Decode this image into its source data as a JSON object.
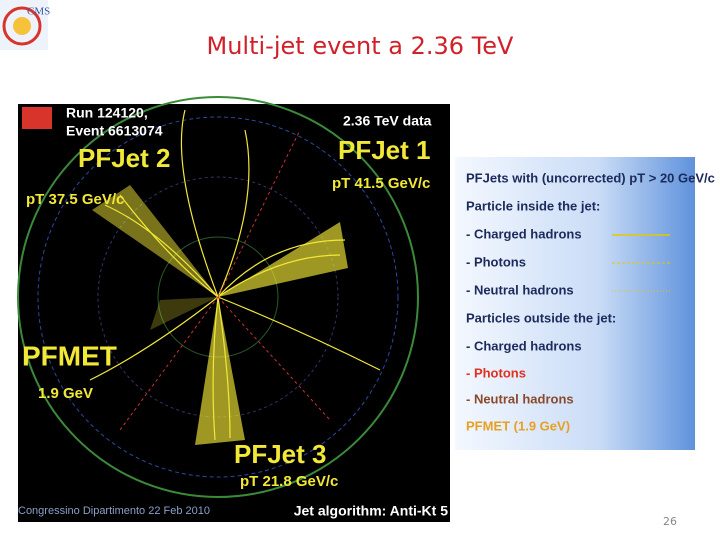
{
  "logo": "CMS",
  "header": {
    "title": "Multi-jet event a 2.36 TeV"
  },
  "event_display": {
    "run": "Run 124120,",
    "event": "Event 6613074",
    "data_label": "2.36 TeV data",
    "jets": [
      {
        "name": "PFJet 1",
        "pt": "pT 41.5 GeV/c"
      },
      {
        "name": "PFJet 2",
        "pt": "pT 37.5 GeV/c"
      },
      {
        "name": "PFJet 3",
        "pt": "pT 21.8 GeV/c"
      }
    ],
    "met": {
      "name": "PFMET",
      "value": "1.9 GeV"
    },
    "algorithm": "Jet algorithm: Anti-Kt 5"
  },
  "legend": {
    "heading": "PFJets with (uncorrected) pT > 20 GeV/c",
    "inside_heading": "Particle inside the jet:",
    "inside": [
      "- Charged hadrons",
      "- Photons",
      "- Neutral hadrons"
    ],
    "outside_heading": "Particles outside the jet:",
    "outside": [
      "- Charged hadrons",
      "- Photons",
      "- Neutral hadrons"
    ],
    "met": "PFMET (1.9 GeV)"
  },
  "footer": {
    "text": "Congressino Dipartimento 22 Feb 2010",
    "page": "26"
  }
}
